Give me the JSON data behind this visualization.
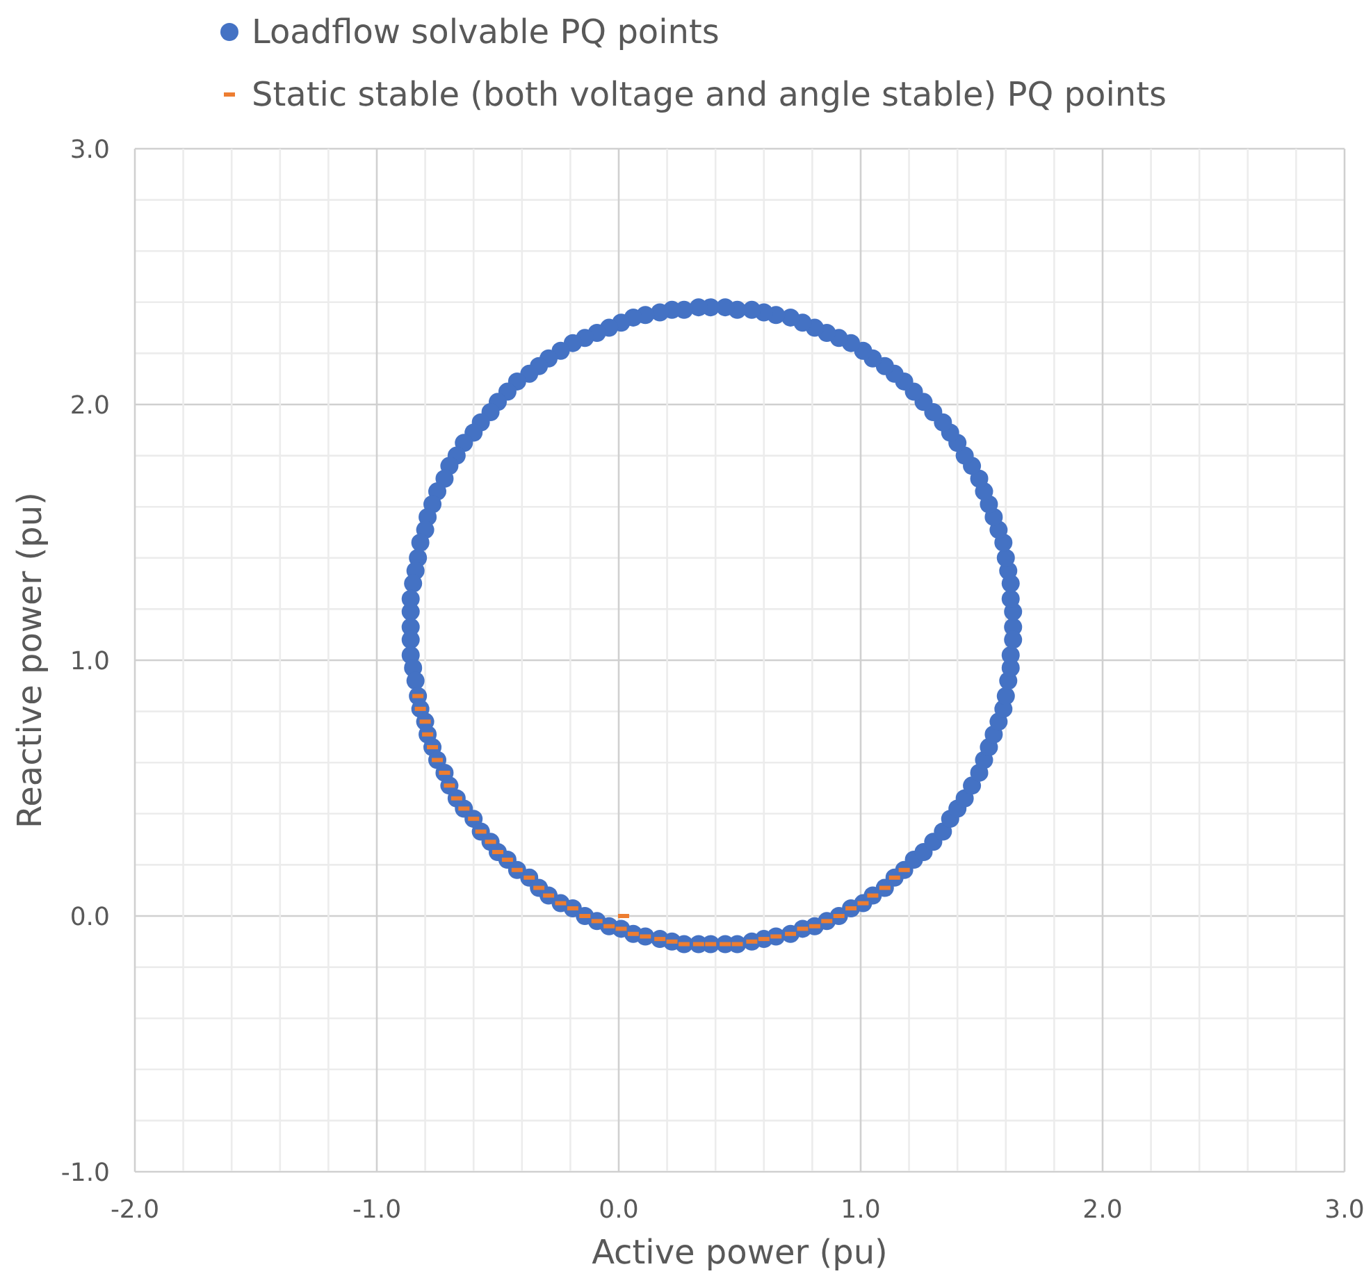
{
  "chart_data": {
    "type": "scatter",
    "xlabel": "Active power (pu)",
    "ylabel": "Reactive power (pu)",
    "xlim": [
      -2,
      3
    ],
    "ylim": [
      -1,
      3
    ],
    "xticks": [
      {
        "value": -2,
        "label": "-2.0"
      },
      {
        "value": -1.8,
        "label": null
      },
      {
        "value": -1.6,
        "label": null
      },
      {
        "value": -1.4,
        "label": null
      },
      {
        "value": -1.2,
        "label": null
      },
      {
        "value": -1,
        "label": "-1.0"
      },
      {
        "value": -0.8,
        "label": null
      },
      {
        "value": -0.6,
        "label": null
      },
      {
        "value": -0.4,
        "label": null
      },
      {
        "value": -0.2,
        "label": null
      },
      {
        "value": 0,
        "label": "0.0"
      },
      {
        "value": 0.2,
        "label": null
      },
      {
        "value": 0.4,
        "label": null
      },
      {
        "value": 0.6,
        "label": null
      },
      {
        "value": 0.8,
        "label": null
      },
      {
        "value": 1,
        "label": "1.0"
      },
      {
        "value": 1.2,
        "label": null
      },
      {
        "value": 1.4,
        "label": null
      },
      {
        "value": 1.6,
        "label": null
      },
      {
        "value": 1.8,
        "label": null
      },
      {
        "value": 2,
        "label": "2.0"
      },
      {
        "value": 2.2,
        "label": null
      },
      {
        "value": 2.4,
        "label": null
      },
      {
        "value": 2.6,
        "label": null
      },
      {
        "value": 2.8,
        "label": null
      },
      {
        "value": 3,
        "label": "3.0"
      }
    ],
    "yticks": [
      {
        "value": -1,
        "label": "-1.0"
      },
      {
        "value": -0.8,
        "label": null
      },
      {
        "value": -0.6,
        "label": null
      },
      {
        "value": -0.4,
        "label": null
      },
      {
        "value": -0.2,
        "label": null
      },
      {
        "value": 0,
        "label": "0.0"
      },
      {
        "value": 0.2,
        "label": null
      },
      {
        "value": 0.4,
        "label": null
      },
      {
        "value": 0.6,
        "label": null
      },
      {
        "value": 0.8,
        "label": null
      },
      {
        "value": 1,
        "label": "1.0"
      },
      {
        "value": 1.2,
        "label": null
      },
      {
        "value": 1.4,
        "label": null
      },
      {
        "value": 1.6,
        "label": null
      },
      {
        "value": 1.8,
        "label": null
      },
      {
        "value": 2,
        "label": "2.0"
      },
      {
        "value": 2.2,
        "label": null
      },
      {
        "value": 2.4,
        "label": null
      },
      {
        "value": 2.6,
        "label": null
      },
      {
        "value": 2.8,
        "label": null
      },
      {
        "value": 3,
        "label": "3.0"
      }
    ],
    "grid": true,
    "legend": "top",
    "series": [
      {
        "name": "Loadflow solvable PQ points",
        "color": "#4472c4",
        "marker": "circle",
        "x": [
          1.63,
          1.63,
          1.62,
          1.62,
          1.61,
          1.6,
          1.59,
          1.57,
          1.55,
          1.53,
          1.51,
          1.49,
          1.46,
          1.43,
          1.4,
          1.37,
          1.34,
          1.3,
          1.26,
          1.22,
          1.18,
          1.14,
          1.1,
          1.05,
          1.01,
          0.96,
          0.91,
          0.86,
          0.81,
          0.76,
          0.71,
          0.65,
          0.6,
          0.55,
          0.49,
          0.44,
          0.38,
          0.33,
          0.27,
          0.22,
          0.17,
          0.11,
          0.06,
          0.01,
          -0.04,
          -0.09,
          -0.14,
          -0.19,
          -0.24,
          -0.29,
          -0.33,
          -0.37,
          -0.42,
          -0.46,
          -0.5,
          -0.53,
          -0.57,
          -0.6,
          -0.64,
          -0.67,
          -0.7,
          -0.72,
          -0.75,
          -0.77,
          -0.79,
          -0.8,
          -0.82,
          -0.83,
          -0.84,
          -0.85,
          -0.86,
          -0.86,
          -0.86,
          -0.86,
          -0.86,
          -0.85,
          -0.84,
          -0.83,
          -0.82,
          -0.8,
          -0.79,
          -0.77,
          -0.75,
          -0.72,
          -0.7,
          -0.67,
          -0.64,
          -0.6,
          -0.57,
          -0.53,
          -0.5,
          -0.46,
          -0.42,
          -0.37,
          -0.33,
          -0.29,
          -0.24,
          -0.19,
          -0.14,
          -0.09,
          -0.04,
          0.01,
          0.06,
          0.11,
          0.17,
          0.22,
          0.27,
          0.33,
          0.38,
          0.44,
          0.49,
          0.55,
          0.6,
          0.65,
          0.71,
          0.76,
          0.81,
          0.86,
          0.91,
          0.96,
          1.01,
          1.05,
          1.1,
          1.14,
          1.18,
          1.22,
          1.26,
          1.3,
          1.34,
          1.37,
          1.4,
          1.43,
          1.46,
          1.49,
          1.51,
          1.53,
          1.55,
          1.57,
          1.59,
          1.6,
          1.61,
          1.62,
          1.62,
          1.63
        ],
        "values": [
          1.13,
          1.19,
          1.24,
          1.3,
          1.35,
          1.4,
          1.46,
          1.51,
          1.56,
          1.61,
          1.66,
          1.71,
          1.76,
          1.8,
          1.85,
          1.89,
          1.93,
          1.97,
          2.01,
          2.05,
          2.09,
          2.12,
          2.15,
          2.18,
          2.21,
          2.24,
          2.26,
          2.28,
          2.3,
          2.32,
          2.34,
          2.35,
          2.36,
          2.37,
          2.37,
          2.38,
          2.38,
          2.38,
          2.37,
          2.37,
          2.36,
          2.35,
          2.34,
          2.32,
          2.3,
          2.28,
          2.26,
          2.24,
          2.21,
          2.18,
          2.15,
          2.12,
          2.09,
          2.05,
          2.01,
          1.97,
          1.93,
          1.89,
          1.85,
          1.8,
          1.76,
          1.71,
          1.66,
          1.61,
          1.56,
          1.51,
          1.46,
          1.4,
          1.35,
          1.3,
          1.24,
          1.19,
          1.13,
          1.08,
          1.02,
          0.97,
          0.92,
          0.86,
          0.81,
          0.76,
          0.71,
          0.66,
          0.61,
          0.56,
          0.51,
          0.46,
          0.42,
          0.38,
          0.33,
          0.29,
          0.25,
          0.22,
          0.18,
          0.15,
          0.11,
          0.08,
          0.05,
          0.03,
          0.0,
          -0.02,
          -0.04,
          -0.05,
          -0.07,
          -0.08,
          -0.09,
          -0.1,
          -0.11,
          -0.11,
          -0.11,
          -0.11,
          -0.11,
          -0.1,
          -0.09,
          -0.08,
          -0.07,
          -0.05,
          -0.04,
          -0.02,
          0.0,
          0.03,
          0.05,
          0.08,
          0.11,
          0.15,
          0.18,
          0.22,
          0.25,
          0.29,
          0.33,
          0.38,
          0.42,
          0.46,
          0.51,
          0.56,
          0.61,
          0.66,
          0.71,
          0.76,
          0.81,
          0.86,
          0.92,
          0.97,
          1.02,
          1.08
        ]
      },
      {
        "name": "Static stable (both voltage and angle stable) PQ points",
        "color": "#ed7d31",
        "marker": "square",
        "x": [
          -0.83,
          -0.82,
          -0.8,
          -0.79,
          -0.77,
          -0.75,
          -0.72,
          -0.7,
          -0.67,
          -0.64,
          -0.6,
          -0.57,
          -0.53,
          -0.5,
          -0.46,
          -0.42,
          -0.37,
          -0.33,
          -0.29,
          -0.24,
          -0.19,
          -0.14,
          -0.09,
          -0.04,
          0.01,
          0.06,
          0.11,
          0.17,
          0.22,
          0.27,
          0.33,
          0.38,
          0.44,
          0.49,
          0.55,
          0.6,
          0.65,
          0.71,
          0.76,
          0.81,
          0.86,
          0.91,
          0.96,
          1.01,
          1.05,
          1.1,
          1.14,
          1.18,
          0.02
        ],
        "values": [
          0.86,
          0.81,
          0.76,
          0.71,
          0.66,
          0.61,
          0.56,
          0.51,
          0.46,
          0.42,
          0.38,
          0.33,
          0.29,
          0.25,
          0.22,
          0.18,
          0.15,
          0.11,
          0.08,
          0.05,
          0.03,
          0.0,
          -0.02,
          -0.04,
          -0.05,
          -0.07,
          -0.08,
          -0.09,
          -0.1,
          -0.11,
          -0.11,
          -0.11,
          -0.11,
          -0.11,
          -0.1,
          -0.09,
          -0.08,
          -0.07,
          -0.05,
          -0.04,
          -0.02,
          0.0,
          0.03,
          0.05,
          0.08,
          0.11,
          0.15,
          0.18,
          0.0
        ]
      }
    ]
  }
}
